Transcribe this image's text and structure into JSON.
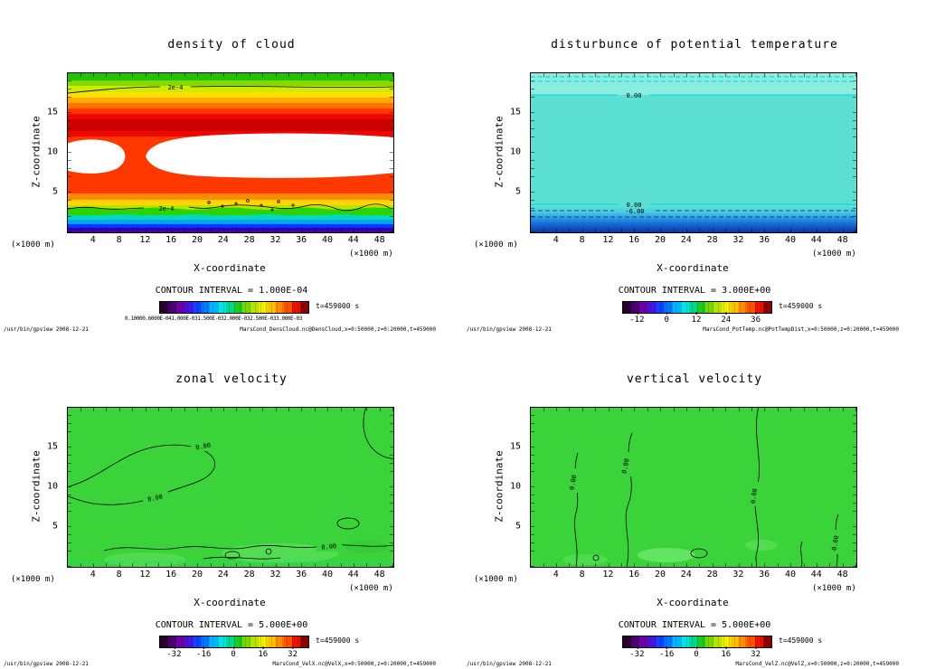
{
  "panels": [
    {
      "title": "density of cloud",
      "ylabel": "Z-coordinate",
      "xlabel": "X-coordinate",
      "unit_left": "(×1000 m)",
      "unit_right": "(×1000 m)",
      "yticks": [
        "15",
        "10",
        "5"
      ],
      "xticks": [
        "4",
        "8",
        "12",
        "16",
        "20",
        "24",
        "28",
        "32",
        "36",
        "40",
        "44",
        "48"
      ],
      "contour_interval_label": "CONTOUR INTERVAL = 1.000E-04",
      "time_label": "t=459000 s",
      "colorbar_text": "0.10000.6000E-041.000E-031.500E-032.000E-032.500E-033.000E-03",
      "contour_labels": [
        "2e-4",
        "2e-4"
      ],
      "footer_left": "/usr/bin/gpview  2008-12-21",
      "footer_right": "MarsCond_DensCloud.nc@DensCloud,x=0:50000,z=0:20000,t=459000"
    },
    {
      "title": "disturbunce of potential temperature",
      "ylabel": "Z-coordinate",
      "xlabel": "X-coordinate",
      "unit_left": "(×1000 m)",
      "unit_right": "(×1000 m)",
      "yticks": [
        "15",
        "10",
        "5"
      ],
      "xticks": [
        "4",
        "8",
        "12",
        "16",
        "20",
        "24",
        "28",
        "32",
        "36",
        "40",
        "44",
        "48"
      ],
      "contour_interval_label": "CONTOUR INTERVAL = 3.000E+00",
      "time_label": "t=459000 s",
      "cb_ticks": [
        "-12",
        "0",
        "12",
        "24",
        "36"
      ],
      "contour_labels": [
        "0.00",
        "0.00",
        "-6.00"
      ],
      "footer_left": "/usr/bin/gpview  2008-12-21",
      "footer_right": "MarsCond_PotTemp.nc@PotTempDist,x=0:50000,z=0:20000,t=459000"
    },
    {
      "title": "zonal velocity",
      "ylabel": "Z-coordinate",
      "xlabel": "X-coordinate",
      "unit_left": "(×1000 m)",
      "unit_right": "(×1000 m)",
      "yticks": [
        "15",
        "10",
        "5"
      ],
      "xticks": [
        "4",
        "8",
        "12",
        "16",
        "20",
        "24",
        "28",
        "32",
        "36",
        "40",
        "44",
        "48"
      ],
      "contour_interval_label": "CONTOUR INTERVAL = 5.000E+00",
      "time_label": "t=459000 s",
      "cb_ticks": [
        "-32",
        "-16",
        "0",
        "16",
        "32"
      ],
      "contour_labels": [
        "0.00",
        "0.00",
        "0.00"
      ],
      "footer_left": "/usr/bin/gpview  2008-12-21",
      "footer_right": "MarsCond_VelX.nc@VelX,x=0:50000,z=0:20000,t=459000"
    },
    {
      "title": "vertical velocity",
      "ylabel": "Z-coordinate",
      "xlabel": "X-coordinate",
      "unit_left": "(×1000 m)",
      "unit_right": "(×1000 m)",
      "yticks": [
        "15",
        "10",
        "5"
      ],
      "xticks": [
        "4",
        "8",
        "12",
        "16",
        "20",
        "24",
        "28",
        "32",
        "36",
        "40",
        "44",
        "48"
      ],
      "contour_interval_label": "CONTOUR INTERVAL = 5.000E+00",
      "time_label": "t=459000 s",
      "cb_ticks": [
        "-32",
        "-16",
        "0",
        "16",
        "32"
      ],
      "contour_labels": [
        "0.00",
        "0.00",
        "0.00",
        "0.00"
      ],
      "footer_left": "/usr/bin/gpview  2008-12-21",
      "footer_right": "MarsCond_VelZ.nc@VelZ,x=0:50000,z=0:20000,t=459000"
    }
  ],
  "chart_data": [
    {
      "type": "heatmap",
      "subtype": "filled-contour",
      "title": "density of cloud",
      "xlabel": "X-coordinate",
      "ylabel": "Z-coordinate",
      "axis_units": "×1000 m",
      "xlim": [
        0,
        50
      ],
      "ylim": [
        0,
        20
      ],
      "xticks": [
        4,
        8,
        12,
        16,
        20,
        24,
        28,
        32,
        36,
        40,
        44,
        48
      ],
      "yticks": [
        5,
        10,
        15
      ],
      "contour_interval": 0.0001,
      "contour_line_labels": [
        "2e-4",
        "2e-4"
      ],
      "colorbar": {
        "style": "rainbow",
        "approx_min": 0.0001,
        "approx_max": 0.003,
        "labels_overlapping": true
      },
      "time": "t=459000 s",
      "source": "MarsCond_DensCloud.nc@DensCloud,x=0:50000,z=0:20000,t=459000",
      "features": [
        "high-density red band spanning all x at z≈13-16",
        "second red band at z≈4-5",
        "near-zero (white) region z≈6-12 broken by a red column near x≈10-12",
        "rainbow-stratified decrease below z≈4: yellow-green-cyan-blue-violet toward surface",
        "low-density green cap above z≈17; 2e-4 contour near z≈17.5 and z≈4.5"
      ]
    },
    {
      "type": "heatmap",
      "subtype": "filled-contour",
      "title": "disturbunce of potential temperature",
      "xlabel": "X-coordinate",
      "ylabel": "Z-coordinate",
      "axis_units": "×1000 m",
      "xlim": [
        0,
        50
      ],
      "ylim": [
        0,
        20
      ],
      "xticks": [
        4,
        8,
        12,
        16,
        20,
        24,
        28,
        32,
        36,
        40,
        44,
        48
      ],
      "yticks": [
        5,
        10,
        15
      ],
      "contour_interval": 3.0,
      "contour_line_labels": [
        "0.00",
        "0.00",
        "-6.00"
      ],
      "colorbar": {
        "style": "rainbow",
        "tick_labels": [
          -12,
          0,
          12,
          24,
          36
        ]
      },
      "time": "t=459000 s",
      "source": "MarsCond_PotTemp.nc@PotTempDist,x=0:50000,z=0:20000,t=459000",
      "features": [
        "near-uniform ≈0 (teal) field over most of the domain",
        "0.00 contour near z≈17.5 with dashed contours just above it",
        "0.00 contour near z≈3, dashed -6.00 contour near z≈2",
        "negative disturbance strengthening to dark blue at the surface (z<2)"
      ]
    },
    {
      "type": "heatmap",
      "subtype": "filled-contour",
      "title": "zonal velocity",
      "xlabel": "X-coordinate",
      "ylabel": "Z-coordinate",
      "axis_units": "×1000 m",
      "xlim": [
        0,
        50
      ],
      "ylim": [
        0,
        20
      ],
      "xticks": [
        4,
        8,
        12,
        16,
        20,
        24,
        28,
        32,
        36,
        40,
        44,
        48
      ],
      "yticks": [
        5,
        10,
        15
      ],
      "contour_interval": 5.0,
      "contour_line_labels": [
        "0.00",
        "0.00",
        "0.00"
      ],
      "colorbar": {
        "style": "rainbow",
        "tick_labels": [
          -32,
          -16,
          0,
          16,
          32
        ]
      },
      "time": "t=459000 s",
      "source": "MarsCond_VelX.nc@VelX,x=0:50000,z=0:20000,t=459000",
      "features": [
        "velocity ≈0 (uniform green) nearly everywhere",
        "meandering 0.00 contour through the left half between z≈5 and z≈12",
        "wavy 0.00 contour and small closed cells along z≈1-3"
      ]
    },
    {
      "type": "heatmap",
      "subtype": "filled-contour",
      "title": "vertical velocity",
      "xlabel": "X-coordinate",
      "ylabel": "Z-coordinate",
      "axis_units": "×1000 m",
      "xlim": [
        0,
        50
      ],
      "ylim": [
        0,
        20
      ],
      "xticks": [
        4,
        8,
        12,
        16,
        20,
        24,
        28,
        32,
        36,
        40,
        44,
        48
      ],
      "yticks": [
        5,
        10,
        15
      ],
      "contour_interval": 5.0,
      "contour_line_labels": [
        "0.00",
        "0.00",
        "0.00",
        "0.00"
      ],
      "colorbar": {
        "style": "rainbow",
        "tick_labels": [
          -32,
          -16,
          0,
          16,
          32
        ]
      },
      "time": "t=459000 s",
      "source": "MarsCond_VelZ.nc@VelZ,x=0:50000,z=0:20000,t=459000",
      "features": [
        "velocity ≈0 (uniform green) nearly everywhere",
        "vertical wavy 0.00 contours near x≈7, x≈15, x≈35",
        "small closed 0.00 cells below z≈3"
      ]
    }
  ]
}
